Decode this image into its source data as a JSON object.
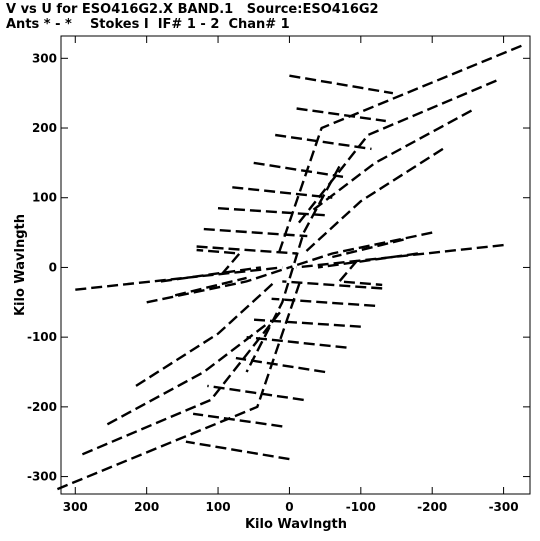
{
  "chart_data": {
    "type": "scatter",
    "title": "V vs U for ESO416G2.X BAND.1   Source:ESO416G2",
    "subtitle": "Ants * - *    Stokes I  IF# 1 - 2  Chan# 1",
    "xlabel": "Kilo Wavlngth",
    "ylabel": "Kilo Wavlngth",
    "xlim": [
      320,
      -337
    ],
    "ylim": [
      -325,
      332
    ],
    "x_reversed": true,
    "grid": false,
    "legend": "none",
    "mark_color": "#000000",
    "x_ticks": [
      {
        "value": 300,
        "label": "300"
      },
      {
        "value": 200,
        "label": "200"
      },
      {
        "value": 100,
        "label": "100"
      },
      {
        "value": 0,
        "label": "0"
      },
      {
        "value": -100,
        "label": "-100"
      },
      {
        "value": -200,
        "label": "-200"
      },
      {
        "value": -300,
        "label": "-300"
      }
    ],
    "y_ticks": [
      {
        "value": 300,
        "label": "300"
      },
      {
        "value": 200,
        "label": "200"
      },
      {
        "value": 100,
        "label": "100"
      },
      {
        "value": 0,
        "label": "0"
      },
      {
        "value": -100,
        "label": "-100"
      },
      {
        "value": -200,
        "label": "-200"
      },
      {
        "value": -300,
        "label": "-300"
      }
    ],
    "series": [
      {
        "type": "dashed-track",
        "points": [
          [
            -325,
            318
          ],
          [
            -45,
            200
          ],
          [
            15,
            20
          ]
        ]
      },
      {
        "type": "dashed-track",
        "points": [
          [
            325,
            -318
          ],
          [
            45,
            -200
          ],
          [
            -15,
            -20
          ]
        ]
      },
      {
        "type": "dashed-track",
        "points": [
          [
            -290,
            268
          ],
          [
            -110,
            190
          ],
          [
            -10,
            60
          ]
        ]
      },
      {
        "type": "dashed-track",
        "points": [
          [
            290,
            -268
          ],
          [
            110,
            -190
          ],
          [
            10,
            -60
          ]
        ]
      },
      {
        "type": "dashed-track",
        "points": [
          [
            -255,
            225
          ],
          [
            -120,
            150
          ],
          [
            -30,
            80
          ]
        ]
      },
      {
        "type": "dashed-track",
        "points": [
          [
            255,
            -225
          ],
          [
            120,
            -150
          ],
          [
            30,
            -80
          ]
        ]
      },
      {
        "type": "dashed-track",
        "points": [
          [
            -215,
            170
          ],
          [
            -100,
            95
          ],
          [
            -20,
            20
          ]
        ]
      },
      {
        "type": "dashed-track",
        "points": [
          [
            215,
            -170
          ],
          [
            100,
            -95
          ],
          [
            20,
            -20
          ]
        ]
      },
      {
        "type": "dashed-track",
        "points": [
          [
            0,
            275
          ],
          [
            -145,
            250
          ]
        ]
      },
      {
        "type": "dashed-track",
        "points": [
          [
            0,
            -275
          ],
          [
            145,
            -250
          ]
        ]
      },
      {
        "type": "dashed-track",
        "points": [
          [
            -10,
            228
          ],
          [
            -135,
            210
          ]
        ]
      },
      {
        "type": "dashed-track",
        "points": [
          [
            10,
            -228
          ],
          [
            135,
            -210
          ]
        ]
      },
      {
        "type": "dashed-track",
        "points": [
          [
            20,
            190
          ],
          [
            -115,
            170
          ]
        ]
      },
      {
        "type": "dashed-track",
        "points": [
          [
            -20,
            -190
          ],
          [
            115,
            -170
          ]
        ]
      },
      {
        "type": "dashed-track",
        "points": [
          [
            50,
            150
          ],
          [
            -75,
            130
          ]
        ]
      },
      {
        "type": "dashed-track",
        "points": [
          [
            -50,
            -150
          ],
          [
            75,
            -130
          ]
        ]
      },
      {
        "type": "dashed-track",
        "points": [
          [
            80,
            115
          ],
          [
            -60,
            100
          ]
        ]
      },
      {
        "type": "dashed-track",
        "points": [
          [
            -80,
            -115
          ],
          [
            60,
            -100
          ]
        ]
      },
      {
        "type": "dashed-track",
        "points": [
          [
            100,
            85
          ],
          [
            -50,
            75
          ]
        ]
      },
      {
        "type": "dashed-track",
        "points": [
          [
            -100,
            -85
          ],
          [
            50,
            -75
          ]
        ]
      },
      {
        "type": "dashed-track",
        "points": [
          [
            120,
            55
          ],
          [
            -25,
            45
          ]
        ]
      },
      {
        "type": "dashed-track",
        "points": [
          [
            -120,
            -55
          ],
          [
            25,
            -45
          ]
        ]
      },
      {
        "type": "dashed-track",
        "points": [
          [
            130,
            30
          ],
          [
            -10,
            20
          ]
        ]
      },
      {
        "type": "dashed-track",
        "points": [
          [
            -130,
            -30
          ],
          [
            10,
            -20
          ]
        ]
      },
      {
        "type": "dashed-track",
        "points": [
          [
            -300,
            32
          ],
          [
            -10,
            0
          ]
        ]
      },
      {
        "type": "dashed-track",
        "points": [
          [
            300,
            -32
          ],
          [
            10,
            0
          ]
        ]
      },
      {
        "type": "dashed-track",
        "points": [
          [
            -200,
            50
          ],
          [
            -60,
            20
          ],
          [
            0,
            0
          ]
        ]
      },
      {
        "type": "dashed-track",
        "points": [
          [
            200,
            -50
          ],
          [
            60,
            -20
          ],
          [
            0,
            0
          ]
        ]
      },
      {
        "type": "dashed-track",
        "points": [
          [
            -180,
            20
          ],
          [
            -40,
            0
          ]
        ]
      },
      {
        "type": "dashed-track",
        "points": [
          [
            180,
            -20
          ],
          [
            40,
            0
          ]
        ]
      },
      {
        "type": "dashed-track",
        "points": [
          [
            -95,
            10
          ],
          [
            -70,
            -20
          ],
          [
            -130,
            -25
          ]
        ]
      },
      {
        "type": "dashed-track",
        "points": [
          [
            95,
            -10
          ],
          [
            70,
            20
          ],
          [
            130,
            25
          ]
        ]
      },
      {
        "type": "dashed-track",
        "points": [
          [
            -70,
            145
          ],
          [
            -20,
            50
          ],
          [
            10,
            -50
          ],
          [
            60,
            -150
          ]
        ]
      },
      {
        "type": "dashed-track",
        "points": [
          [
            -160,
            40
          ],
          [
            -60,
            15
          ]
        ]
      },
      {
        "type": "dashed-track",
        "points": [
          [
            160,
            -40
          ],
          [
            60,
            -15
          ]
        ]
      }
    ]
  }
}
